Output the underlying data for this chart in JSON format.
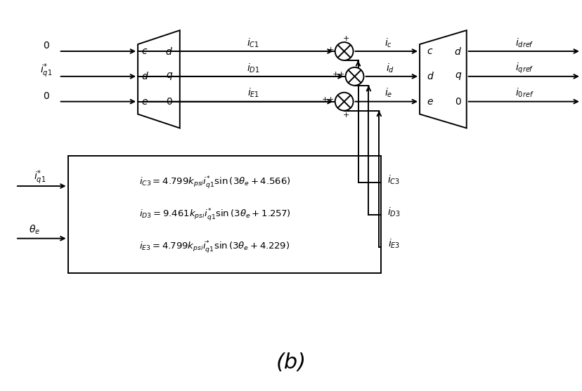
{
  "fig_width": 8.29,
  "fig_height": 5.57,
  "dpi": 100,
  "bg_color": "#ffffff",
  "title": "(b)",
  "title_fontsize": 22,
  "title_style": "italic"
}
